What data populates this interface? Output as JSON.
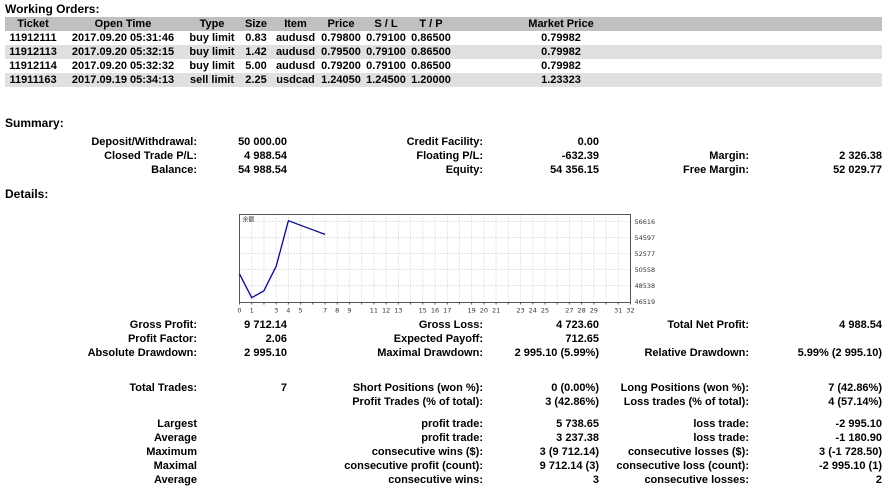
{
  "working_orders": {
    "title": "Working Orders:",
    "columns": [
      "Ticket",
      "Open Time",
      "Type",
      "Size",
      "Item",
      "Price",
      "S / L",
      "T / P",
      "Market Price"
    ],
    "rows": [
      [
        "11912111",
        "2017.09.20 05:31:46",
        "buy limit",
        "0.83",
        "audusd",
        "0.79800",
        "0.79100",
        "0.86500",
        "0.79982"
      ],
      [
        "11912113",
        "2017.09.20 05:32:15",
        "buy limit",
        "1.42",
        "audusd",
        "0.79500",
        "0.79100",
        "0.86500",
        "0.79982"
      ],
      [
        "11912114",
        "2017.09.20 05:32:32",
        "buy limit",
        "5.00",
        "audusd",
        "0.79200",
        "0.79100",
        "0.86500",
        "0.79982"
      ],
      [
        "11911163",
        "2017.09.19 05:34:13",
        "sell limit",
        "2.25",
        "usdcad",
        "1.24050",
        "1.24500",
        "1.20000",
        "1.23323"
      ]
    ]
  },
  "summary": {
    "title": "Summary:",
    "rows": [
      [
        "Deposit/Withdrawal:",
        "50 000.00",
        "Credit Facility:",
        "0.00",
        "",
        ""
      ],
      [
        "Closed Trade P/L:",
        "4 988.54",
        "Floating P/L:",
        "-632.39",
        "Margin:",
        "2 326.38"
      ],
      [
        "Balance:",
        "54 988.54",
        "Equity:",
        "54 356.15",
        "Free Margin:",
        "52 029.77"
      ]
    ]
  },
  "details": {
    "title": "Details:"
  },
  "stats_top": {
    "rows": [
      [
        "Gross Profit:",
        "9 712.14",
        "Gross Loss:",
        "4 723.60",
        "Total Net Profit:",
        "4 988.54"
      ],
      [
        "Profit Factor:",
        "2.06",
        "Expected Payoff:",
        "712.65",
        "",
        ""
      ],
      [
        "Absolute Drawdown:",
        "2 995.10",
        "Maximal Drawdown:",
        "2 995.10 (5.99%)",
        "Relative Drawdown:",
        "5.99% (2 995.10)"
      ]
    ]
  },
  "stats_bottom": {
    "rows_a": [
      [
        "Total Trades:",
        "7",
        "Short Positions (won %):",
        "0 (0.00%)",
        "Long Positions (won %):",
        "7 (42.86%)"
      ],
      [
        "",
        "",
        "Profit Trades (% of total):",
        "3 (42.86%)",
        "Loss trades (% of total):",
        "4 (57.14%)"
      ]
    ],
    "rows_b": [
      [
        "Largest",
        "",
        "profit trade:",
        "5 738.65",
        "loss trade:",
        "-2 995.10"
      ],
      [
        "Average",
        "",
        "profit trade:",
        "3 237.38",
        "loss trade:",
        "-1 180.90"
      ],
      [
        "Maximum",
        "",
        "consecutive wins ($):",
        "3 (9 712.14)",
        "consecutive losses ($):",
        "3 (-1 728.50)"
      ],
      [
        "Maximal",
        "",
        "consecutive profit (count):",
        "9 712.14 (3)",
        "consecutive loss (count):",
        "-2 995.10 (1)"
      ],
      [
        "Average",
        "",
        "consecutive wins:",
        "3",
        "consecutive losses:",
        "2"
      ]
    ]
  },
  "chart_data": {
    "type": "line",
    "title": "",
    "xlabel": "",
    "ylabel": "",
    "corner_label": "余额",
    "line_color": "#0000C8",
    "grid": true,
    "grid_color": "#c9c9c9",
    "border_color": "#555555",
    "label_color": "#333333",
    "xlim": [
      0,
      32
    ],
    "x_tick_count": 33,
    "x_tick_labels": [
      "0",
      "1",
      "3",
      "4",
      "5",
      "7",
      "8",
      "9",
      "11",
      "12",
      "13",
      "15",
      "16",
      "17",
      "19",
      "20",
      "21",
      "23",
      "24",
      "25",
      "27",
      "28",
      "29",
      "31",
      "32"
    ],
    "x_tick_label_positions": [
      0,
      1,
      3,
      4,
      5,
      7,
      8,
      9,
      11,
      12,
      13,
      15,
      16,
      17,
      19,
      20,
      21,
      23,
      24,
      25,
      27,
      28,
      29,
      31,
      32
    ],
    "ylabels": [
      46519,
      48538,
      50558,
      52577,
      54597,
      56616
    ],
    "series": [
      {
        "name": "balance",
        "x": [
          0,
          1,
          2,
          3,
          4,
          5,
          6,
          7
        ],
        "values": [
          50000.0,
          47004.9,
          47874.9,
          50978.39,
          56717.04,
          56140.87,
          55564.71,
          54988.54
        ]
      }
    ]
  }
}
